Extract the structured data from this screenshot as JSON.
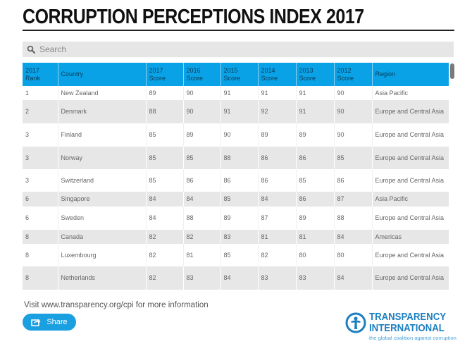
{
  "page": {
    "title": "CORRUPTION PERCEPTIONS INDEX 2017"
  },
  "search": {
    "placeholder": "Search",
    "value": ""
  },
  "table": {
    "columns": [
      {
        "line1": "2017",
        "line2": "Rank"
      },
      {
        "line1": "Country",
        "line2": ""
      },
      {
        "line1": "2017",
        "line2": "Score"
      },
      {
        "line1": "2016",
        "line2": "Score"
      },
      {
        "line1": "2015",
        "line2": "Score"
      },
      {
        "line1": "2014",
        "line2": "Score"
      },
      {
        "line1": "2013",
        "line2": "Score"
      },
      {
        "line1": "2012",
        "line2": "Score"
      },
      {
        "line1": "Region",
        "line2": ""
      }
    ],
    "rows": [
      {
        "rank": "1",
        "country": "New Zealand",
        "s2017": "89",
        "s2016": "90",
        "s2015": "91",
        "s2014": "91",
        "s2013": "91",
        "s2012": "90",
        "region": "Asia Pacific"
      },
      {
        "rank": "2",
        "country": "Denmark",
        "s2017": "88",
        "s2016": "90",
        "s2015": "91",
        "s2014": "92",
        "s2013": "91",
        "s2012": "90",
        "region": "Europe and Central Asia"
      },
      {
        "rank": "3",
        "country": "Finland",
        "s2017": "85",
        "s2016": "89",
        "s2015": "90",
        "s2014": "89",
        "s2013": "89",
        "s2012": "90",
        "region": "Europe and Central Asia"
      },
      {
        "rank": "3",
        "country": "Norway",
        "s2017": "85",
        "s2016": "85",
        "s2015": "88",
        "s2014": "86",
        "s2013": "86",
        "s2012": "85",
        "region": "Europe and Central Asia"
      },
      {
        "rank": "3",
        "country": "Switzerland",
        "s2017": "85",
        "s2016": "86",
        "s2015": "86",
        "s2014": "86",
        "s2013": "85",
        "s2012": "86",
        "region": "Europe and Central Asia"
      },
      {
        "rank": "6",
        "country": "Singapore",
        "s2017": "84",
        "s2016": "84",
        "s2015": "85",
        "s2014": "84",
        "s2013": "86",
        "s2012": "87",
        "region": "Asia Pacific"
      },
      {
        "rank": "6",
        "country": "Sweden",
        "s2017": "84",
        "s2016": "88",
        "s2015": "89",
        "s2014": "87",
        "s2013": "89",
        "s2012": "88",
        "region": "Europe and Central Asia"
      },
      {
        "rank": "8",
        "country": "Canada",
        "s2017": "82",
        "s2016": "82",
        "s2015": "83",
        "s2014": "81",
        "s2013": "81",
        "s2012": "84",
        "region": "Americas"
      },
      {
        "rank": "8",
        "country": "Luxembourg",
        "s2017": "82",
        "s2016": "81",
        "s2015": "85",
        "s2014": "82",
        "s2013": "80",
        "s2012": "80",
        "region": "Europe and Central Asia"
      },
      {
        "rank": "8",
        "country": "Netherlands",
        "s2017": "82",
        "s2016": "83",
        "s2015": "84",
        "s2014": "83",
        "s2013": "83",
        "s2012": "84",
        "region": "Europe and Central Asia"
      }
    ]
  },
  "footer": {
    "info_text": "Visit www.transparency.org/cpi for more information",
    "share_label": "Share"
  },
  "logo": {
    "line1": "TRANSPARENCY",
    "line2": "INTERNATIONAL",
    "tagline": "the global coalition against corruption"
  },
  "colors": {
    "header_bg": "#0aa2e6",
    "share_bg": "#1a9fe0",
    "logo_blue": "#1b7fc1",
    "stripe": "#e7e7e7"
  },
  "icons": {
    "search": "search-icon",
    "share": "share-icon",
    "logo": "transparency-logo-icon"
  }
}
